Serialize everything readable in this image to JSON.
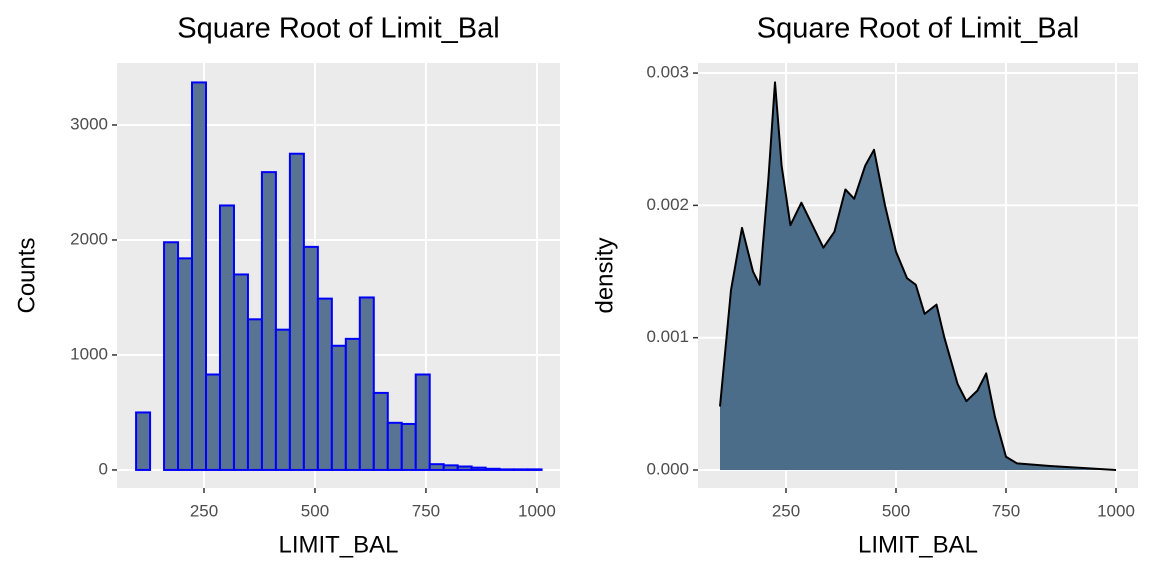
{
  "chart_data": [
    {
      "type": "histogram",
      "title": "Square Root of Limit_Bal",
      "xlabel": "LIMIT_BAL",
      "ylabel": "Counts",
      "bins": [
        97,
        128.5,
        160,
        191.5,
        223,
        254.5,
        286,
        317.5,
        349,
        380.5,
        412,
        443.5,
        475,
        506.5,
        538,
        569.5,
        601,
        632.5,
        664,
        695.5,
        727,
        758.5,
        790,
        821.5,
        853,
        884.5,
        916,
        947.5,
        979,
        1010.5
      ],
      "values": [
        500,
        0,
        1980,
        1840,
        3370,
        830,
        2300,
        1700,
        1310,
        2590,
        1220,
        2750,
        1940,
        1490,
        1080,
        1140,
        1500,
        670,
        410,
        400,
        830,
        50,
        40,
        30,
        20,
        10,
        5,
        5,
        5
      ],
      "color": "#587492",
      "edgecolor": "#0000ff",
      "xlim": [
        54,
        1052
      ],
      "ylim": [
        -157,
        3539
      ],
      "xticks": [
        250,
        500,
        750,
        1000
      ],
      "yticks": [
        0,
        1000,
        2000,
        3000
      ],
      "grid": true
    },
    {
      "type": "area",
      "title": "Square Root of Limit_Bal",
      "xlabel": "LIMIT_BAL",
      "ylabel": "density",
      "x": [
        100,
        125,
        150,
        175,
        190,
        210,
        225,
        240,
        260,
        285,
        310,
        335,
        360,
        385,
        405,
        430,
        450,
        475,
        500,
        525,
        545,
        565,
        592,
        610,
        640,
        660,
        685,
        705,
        725,
        750,
        775,
        850,
        1000
      ],
      "values": [
        0.00048,
        0.00136,
        0.00183,
        0.0015,
        0.0014,
        0.0022,
        0.00293,
        0.0023,
        0.00185,
        0.00202,
        0.00185,
        0.00168,
        0.0018,
        0.00212,
        0.00205,
        0.0023,
        0.00242,
        0.002,
        0.00165,
        0.00145,
        0.0014,
        0.00118,
        0.00125,
        0.001,
        0.00065,
        0.00052,
        0.0006,
        0.00073,
        0.0004,
        0.0001,
        5e-05,
        3e-05,
        0
      ],
      "color": "#4b6d8a",
      "linecolor": "#000000",
      "xlim": [
        50,
        1050
      ],
      "ylim": [
        -0.000136,
        0.003076
      ],
      "xticks": [
        250,
        500,
        750,
        1000
      ],
      "yticks": [
        {
          "value": 0,
          "label": "0.000"
        },
        {
          "value": 0.001,
          "label": "0.001"
        },
        {
          "value": 0.002,
          "label": "0.002"
        },
        {
          "value": 0.003,
          "label": "0.003"
        }
      ],
      "grid": true
    }
  ]
}
